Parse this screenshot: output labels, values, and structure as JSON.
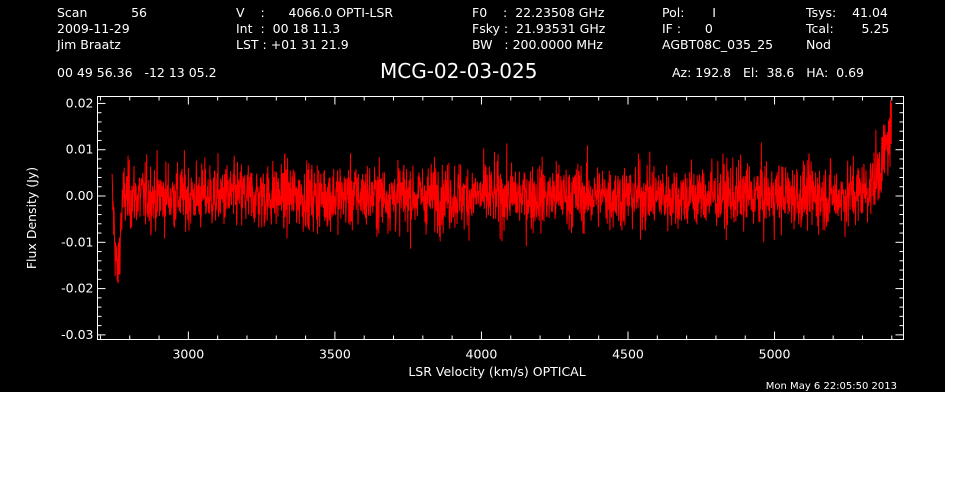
{
  "header": {
    "col1": [
      "Scan           56",
      "2009-11-29",
      "Jim Braatz"
    ],
    "col2": [
      "V    :      4066.0 OPTI-LSR",
      "Int  :  00 18 11.3",
      "LST : +01 31 21.9"
    ],
    "col3": [
      "F0    :  22.23508 GHz",
      "Fsky :  21.93531 GHz",
      "BW   : 200.0000 MHz"
    ],
    "col4": [
      "Pol:       I",
      "IF :      0",
      "AGBT08C_035_25"
    ],
    "col5": [
      "Tsys:    41.04",
      "Tcal:       5.25",
      "Nod"
    ],
    "coords": "00 49 56.36   -12 13 05.2",
    "source": "MCG-02-03-025",
    "azelha": "Az: 192.8   El:  38.6   HA:  0.69"
  },
  "timestamp": "Mon May  6 22:05:50 2013",
  "colors": {
    "background": "#000000",
    "axes": "#ffffff",
    "series": "#ff0000"
  },
  "chart_data": {
    "type": "line",
    "title": "MCG-02-03-025",
    "xlabel": "LSR Velocity (km/s) OPTICAL",
    "ylabel": "Flux Density (Jy)",
    "xlim": [
      2690,
      5440
    ],
    "ylim": [
      -0.031,
      0.0215
    ],
    "x_ticks": [
      3000,
      3500,
      4000,
      4500,
      5000
    ],
    "x_tick_labels": [
      "3000",
      "3500",
      "4000",
      "4500",
      "5000"
    ],
    "y_ticks": [
      -0.03,
      -0.02,
      -0.01,
      0.0,
      0.01,
      0.02
    ],
    "y_tick_labels": [
      "-0.03",
      "-0.02",
      "-0.01",
      "0.00",
      "0.01",
      "0.02"
    ],
    "grid": false,
    "series": [
      {
        "x": [
          2740,
          2750,
          2755,
          2760,
          2765,
          2770,
          2780,
          2800,
          2900,
          3000,
          3100,
          3200,
          3300,
          3400,
          3500,
          3600,
          3700,
          3800,
          3900,
          4000,
          4100,
          4200,
          4300,
          4400,
          4500,
          4600,
          4700,
          4800,
          4900,
          5000,
          5100,
          5200,
          5250,
          5300,
          5330,
          5360,
          5380,
          5400
        ],
        "y": [
          0.0,
          -0.01,
          -0.016,
          -0.017,
          -0.012,
          -0.005,
          0.0,
          0.0,
          0.0,
          0.0,
          0.0,
          0.0,
          0.0,
          0.0,
          0.0,
          0.0,
          0.0,
          0.0,
          0.0,
          0.0,
          0.0,
          0.0,
          0.0,
          0.0,
          0.0,
          0.0,
          0.0,
          0.0,
          0.0,
          0.0,
          0.0,
          0.0,
          0.0,
          0.001,
          0.002,
          0.006,
          0.01,
          0.015
        ],
        "noise_rms": 0.004
      }
    ]
  }
}
